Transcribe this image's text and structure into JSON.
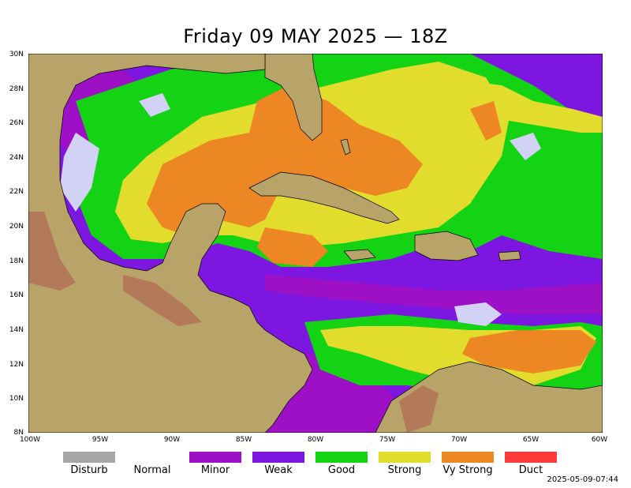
{
  "title": "Friday 09 MAY 2025 — 18Z",
  "lat_labels": [
    "30N",
    "28N",
    "26N",
    "24N",
    "22N",
    "20N",
    "18N",
    "16N",
    "14N",
    "12N",
    "10N",
    "8N"
  ],
  "lon_labels": [
    "100W",
    "95W",
    "90W",
    "85W",
    "80W",
    "75W",
    "70W",
    "65W",
    "60W"
  ],
  "legend": [
    {
      "label": "Disturb",
      "color": "#a6a6a6"
    },
    {
      "label": "Normal",
      "color": "#ffffff"
    },
    {
      "label": "Minor",
      "color": "#9e10c6"
    },
    {
      "label": "Weak",
      "color": "#7c16e0"
    },
    {
      "label": "Good",
      "color": "#14d214"
    },
    {
      "label": "Strong",
      "color": "#e2dc2c"
    },
    {
      "label": "Vy Strong",
      "color": "#ec8724"
    },
    {
      "label": "Duct",
      "color": "#ff3a3a"
    }
  ],
  "timestamp": "2025-05-09-07:44",
  "colors": {
    "land": "#b8a468",
    "mountain": "#b06f55",
    "ocean_base": "#7c16e0",
    "disturb": "#d2d2f6"
  }
}
